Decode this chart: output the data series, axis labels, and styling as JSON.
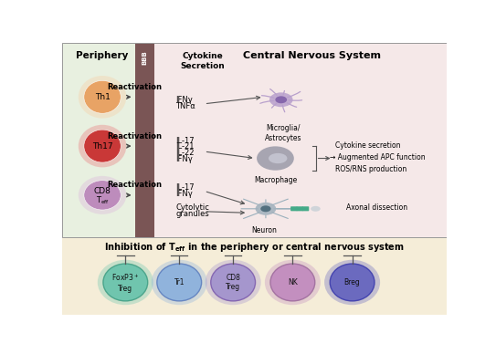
{
  "fig_width": 5.43,
  "fig_height": 3.88,
  "dpi": 100,
  "top_bg_left": "#e8f0e0",
  "top_bg_right": "#f5e8e8",
  "bottom_bg": "#f5edd8",
  "bbb_color": "#7a5555",
  "periphery_label": "Periphery",
  "bbb_label": "BBB",
  "cns_label": "Central Nervous System",
  "th1_outer": "#f5d5b0",
  "th1_inner": "#e8a060",
  "th17_outer": "#e89090",
  "th17_inner": "#c83030",
  "cd8_outer": "#ddc0dd",
  "cd8_inner": "#bb88bb",
  "microglia_color": "#b8a0cc",
  "macrophage_color": "#9a9aa8",
  "neuron_color": "#a0b0bc",
  "cell_colors_bottom": [
    "#5bbfa8",
    "#80aadd",
    "#9988cc",
    "#bb80bb",
    "#5555bb"
  ],
  "cell_border_colors": [
    "#3a9a80",
    "#5577bb",
    "#7755aa",
    "#996699",
    "#3333aa"
  ]
}
